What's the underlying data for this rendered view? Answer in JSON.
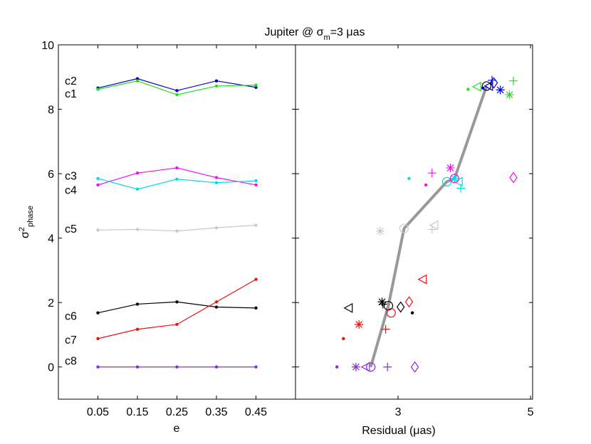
{
  "figure": {
    "title": "Jupiter @ σ",
    "title_sub": "m",
    "title_tail": "=3 μas"
  },
  "chart_data": [
    {
      "type": "line",
      "panel": "left",
      "xlabel": "e",
      "ylabel_base": "σ",
      "ylabel_sup": "2",
      "ylabel_sub": "phase",
      "xlim": [
        -0.05,
        0.55
      ],
      "ylim": [
        -1,
        10
      ],
      "x_ticks": [
        0.05,
        0.15,
        0.25,
        0.35,
        0.45
      ],
      "x_tick_labels": [
        "0.05",
        "0.15",
        "0.25",
        "0.35",
        "0.45"
      ],
      "y_ticks": [
        0,
        2,
        4,
        6,
        8,
        10
      ],
      "y_tick_labels": [
        "0",
        "2",
        "4",
        "6",
        "8",
        "10"
      ],
      "x": [
        0.05,
        0.15,
        0.25,
        0.35,
        0.45
      ],
      "series": [
        {
          "name": "c2",
          "color": "#0000cc",
          "values": [
            8.66,
            8.95,
            8.58,
            8.88,
            8.68
          ]
        },
        {
          "name": "c1",
          "color": "#22dd22",
          "values": [
            8.62,
            8.88,
            8.45,
            8.72,
            8.75
          ]
        },
        {
          "name": "c3",
          "color": "#ee11ee",
          "values": [
            5.65,
            6.02,
            6.18,
            5.88,
            5.65
          ]
        },
        {
          "name": "c4",
          "color": "#00dddd",
          "values": [
            5.85,
            5.52,
            5.83,
            5.72,
            5.78
          ]
        },
        {
          "name": "c5",
          "color": "#c8c8c8",
          "values": [
            4.25,
            4.27,
            4.22,
            4.32,
            4.4
          ]
        },
        {
          "name": "c6",
          "color": "#000000",
          "values": [
            1.68,
            1.95,
            2.02,
            1.86,
            1.83
          ]
        },
        {
          "name": "c7",
          "color": "#ee1111",
          "values": [
            0.88,
            1.17,
            1.32,
            2.02,
            2.72
          ]
        },
        {
          "name": "c8",
          "color": "#8a2be2",
          "values": [
            0.0,
            0.0,
            0.0,
            0.0,
            0.0
          ]
        }
      ],
      "labels": [
        {
          "text": "c2",
          "color": "#000000",
          "y": 8.9
        },
        {
          "text": "c1",
          "color": "#000000",
          "y": 8.5
        },
        {
          "text": "c3",
          "color": "#000000",
          "y": 5.95
        },
        {
          "text": "c4",
          "color": "#000000",
          "y": 5.5
        },
        {
          "text": "c5",
          "color": "#000000",
          "y": 4.3
        },
        {
          "text": "c6",
          "color": "#000000",
          "y": 1.6
        },
        {
          "text": "c7",
          "color": "#000000",
          "y": 0.85
        },
        {
          "text": "c8",
          "color": "#000000",
          "y": 0.2
        }
      ]
    },
    {
      "type": "scatter",
      "panel": "right",
      "xlabel": "Residual (μas)",
      "xscale": "log",
      "xlim": [
        2.02,
        5.04
      ],
      "ylim": [
        -1,
        10
      ],
      "x_ticks": [
        3,
        5
      ],
      "x_tick_labels": [
        "3",
        "5"
      ],
      "trend_line": {
        "color": "#999999",
        "x": [
          2.7,
          2.89,
          3.07,
          3.62,
          3.73,
          4.22
        ],
        "y": [
          0.0,
          1.9,
          4.3,
          5.75,
          5.85,
          8.72
        ]
      },
      "points": [
        {
          "x": 4.22,
          "y": 8.72,
          "marker": "circle",
          "color": "#000000"
        },
        {
          "x": 4.16,
          "y": 8.66,
          "marker": "dot",
          "color": "#0000cc"
        },
        {
          "x": 4.31,
          "y": 8.9,
          "marker": "plus",
          "color": "#0000cc"
        },
        {
          "x": 4.34,
          "y": 8.82,
          "marker": "diamond",
          "color": "#0000cc"
        },
        {
          "x": 4.45,
          "y": 8.6,
          "marker": "asterisk",
          "color": "#0000cc"
        },
        {
          "x": 4.26,
          "y": 8.72,
          "marker": "triangle-left",
          "color": "#0000cc"
        },
        {
          "x": 3.93,
          "y": 8.62,
          "marker": "dot",
          "color": "#22dd22"
        },
        {
          "x": 4.07,
          "y": 8.7,
          "marker": "triangle-left",
          "color": "#22dd22"
        },
        {
          "x": 4.68,
          "y": 8.88,
          "marker": "plus",
          "color": "#22dd22"
        },
        {
          "x": 4.61,
          "y": 8.45,
          "marker": "asterisk",
          "color": "#22dd22"
        },
        {
          "x": 3.62,
          "y": 5.75,
          "marker": "circle",
          "color": "#00dddd"
        },
        {
          "x": 3.73,
          "y": 5.85,
          "marker": "asterisk",
          "color": "#00dddd"
        },
        {
          "x": 3.79,
          "y": 5.75,
          "marker": "triangle-left",
          "color": "#00dddd"
        },
        {
          "x": 3.82,
          "y": 5.55,
          "marker": "plus",
          "color": "#00dddd"
        },
        {
          "x": 3.13,
          "y": 5.85,
          "marker": "dot",
          "color": "#00dddd"
        },
        {
          "x": 3.73,
          "y": 5.85,
          "marker": "circle",
          "color": "#ee11ee"
        },
        {
          "x": 3.67,
          "y": 6.18,
          "marker": "asterisk",
          "color": "#ee11ee"
        },
        {
          "x": 3.42,
          "y": 6.02,
          "marker": "plus",
          "color": "#ee11ee"
        },
        {
          "x": 3.34,
          "y": 5.65,
          "marker": "dot",
          "color": "#ee11ee"
        },
        {
          "x": 4.68,
          "y": 5.88,
          "marker": "diamond",
          "color": "#ee11ee"
        },
        {
          "x": 3.07,
          "y": 4.3,
          "marker": "circle",
          "color": "#c8c8c8"
        },
        {
          "x": 3.45,
          "y": 4.4,
          "marker": "triangle-left",
          "color": "#c8c8c8"
        },
        {
          "x": 3.42,
          "y": 4.27,
          "marker": "plus",
          "color": "#c8c8c8"
        },
        {
          "x": 2.8,
          "y": 4.22,
          "marker": "asterisk",
          "color": "#c8c8c8"
        },
        {
          "x": 2.89,
          "y": 1.9,
          "marker": "circle",
          "color": "#000000"
        },
        {
          "x": 2.82,
          "y": 2.02,
          "marker": "asterisk",
          "color": "#000000"
        },
        {
          "x": 2.83,
          "y": 1.95,
          "marker": "plus",
          "color": "#000000"
        },
        {
          "x": 3.03,
          "y": 1.86,
          "marker": "diamond",
          "color": "#000000"
        },
        {
          "x": 2.48,
          "y": 1.83,
          "marker": "triangle-left",
          "color": "#000000"
        },
        {
          "x": 3.17,
          "y": 1.68,
          "marker": "dot",
          "color": "#000000"
        },
        {
          "x": 2.92,
          "y": 1.68,
          "marker": "circle",
          "color": "#ee1111"
        },
        {
          "x": 3.13,
          "y": 2.02,
          "marker": "diamond",
          "color": "#ee1111"
        },
        {
          "x": 3.3,
          "y": 2.72,
          "marker": "triangle-left",
          "color": "#ee1111"
        },
        {
          "x": 2.86,
          "y": 1.17,
          "marker": "plus",
          "color": "#ee1111"
        },
        {
          "x": 2.58,
          "y": 1.32,
          "marker": "asterisk",
          "color": "#ee1111"
        },
        {
          "x": 2.43,
          "y": 0.88,
          "marker": "dot",
          "color": "#ee1111"
        },
        {
          "x": 2.7,
          "y": 0.0,
          "marker": "circle",
          "color": "#8a2be2"
        },
        {
          "x": 2.65,
          "y": 0.0,
          "marker": "triangle-left",
          "color": "#8a2be2"
        },
        {
          "x": 2.55,
          "y": 0.0,
          "marker": "asterisk",
          "color": "#8a2be2"
        },
        {
          "x": 2.88,
          "y": 0.0,
          "marker": "plus",
          "color": "#8a2be2"
        },
        {
          "x": 3.2,
          "y": 0.0,
          "marker": "diamond",
          "color": "#8a2be2"
        },
        {
          "x": 2.37,
          "y": 0.0,
          "marker": "dot",
          "color": "#8a2be2"
        }
      ]
    }
  ]
}
